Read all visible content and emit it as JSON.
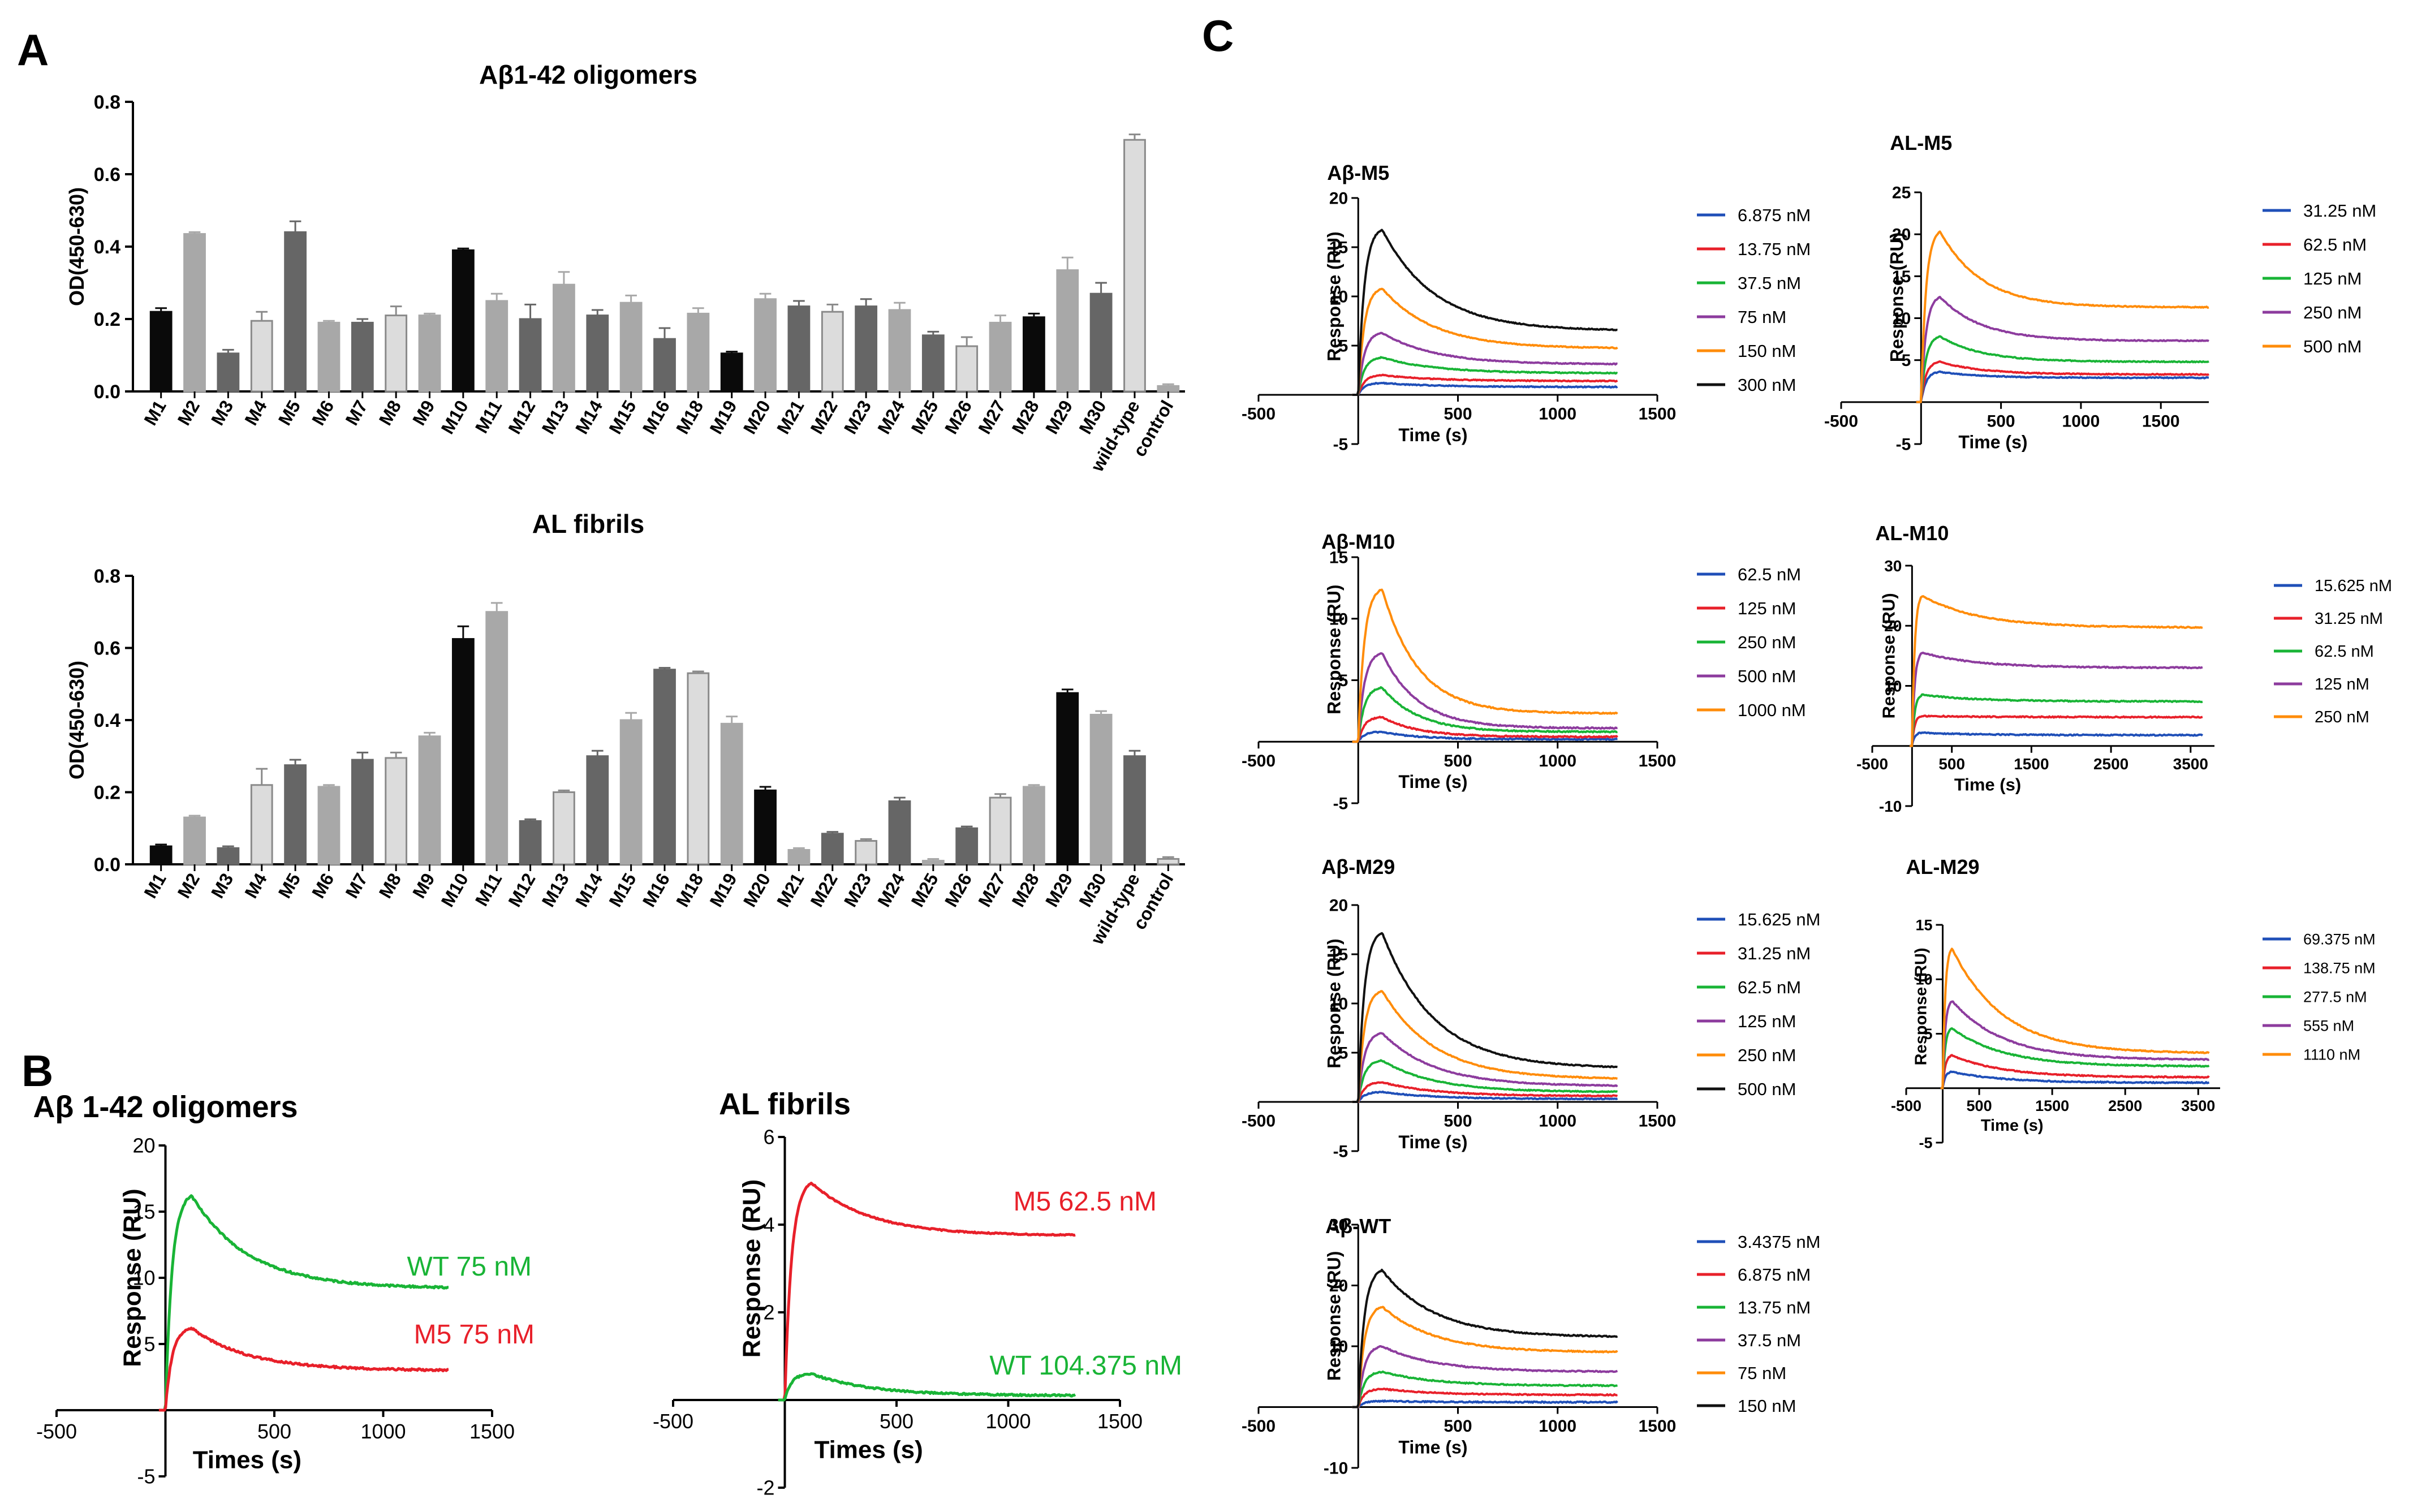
{
  "panel_letters": {
    "a": "A",
    "b": "B",
    "c": "C"
  },
  "colors": {
    "bar_black": "#0a0a0a",
    "bar_light": "#dcdcdc",
    "bar_mid": "#a8a8a8",
    "bar_dark": "#666666",
    "blue": "#1f4fb8",
    "red": "#e8202a",
    "green": "#19b436",
    "purple": "#8d3c9e",
    "orange": "#ff8c0a",
    "black": "#111111"
  },
  "chart_data": [
    {
      "id": "a1",
      "type": "bar",
      "title": "Aβ1-42 oligomers",
      "ylabel": "OD(450-630)",
      "ylim": [
        0,
        0.8
      ],
      "yticks": [
        "0.0",
        "0.2",
        "0.4",
        "0.6",
        "0.8"
      ],
      "categories": [
        "M1",
        "M2",
        "M3",
        "M4",
        "M5",
        "M6",
        "M7",
        "M8",
        "M9",
        "M10",
        "M11",
        "M12",
        "M13",
        "M14",
        "M15",
        "M16",
        "M18",
        "M19",
        "M20",
        "M21",
        "M22",
        "M23",
        "M24",
        "M25",
        "M26",
        "M27",
        "M28",
        "M29",
        "M30",
        "wild-type",
        "control"
      ],
      "values": [
        0.22,
        0.435,
        0.105,
        0.195,
        0.44,
        0.19,
        0.19,
        0.21,
        0.21,
        0.39,
        0.25,
        0.2,
        0.295,
        0.21,
        0.245,
        0.145,
        0.215,
        0.105,
        0.255,
        0.235,
        0.22,
        0.235,
        0.225,
        0.155,
        0.125,
        0.19,
        0.205,
        0.335,
        0.27,
        0.695,
        0.015
      ],
      "errors": [
        0.01,
        0.005,
        0.01,
        0.025,
        0.03,
        0.005,
        0.01,
        0.025,
        0.005,
        0.005,
        0.02,
        0.04,
        0.035,
        0.015,
        0.02,
        0.03,
        0.015,
        0.005,
        0.015,
        0.015,
        0.02,
        0.02,
        0.02,
        0.01,
        0.025,
        0.02,
        0.01,
        0.035,
        0.03,
        0.015,
        0.005
      ],
      "shades": [
        "k",
        "m",
        "d",
        "l",
        "d",
        "m",
        "d",
        "l",
        "m",
        "k",
        "m",
        "d",
        "m",
        "d",
        "m",
        "d",
        "m",
        "k",
        "m",
        "d",
        "l",
        "d",
        "m",
        "d",
        "l",
        "m",
        "k",
        "m",
        "d",
        "l",
        "m"
      ]
    },
    {
      "id": "a2",
      "type": "bar",
      "title": "AL fibrils",
      "ylabel": "OD(450-630)",
      "ylim": [
        0,
        0.8
      ],
      "yticks": [
        "0.0",
        "0.2",
        "0.4",
        "0.6",
        "0.8"
      ],
      "categories": [
        "M1",
        "M2",
        "M3",
        "M4",
        "M5",
        "M6",
        "M7",
        "M8",
        "M9",
        "M10",
        "M11",
        "M12",
        "M13",
        "M14",
        "M15",
        "M16",
        "M18",
        "M19",
        "M20",
        "M21",
        "M22",
        "M23",
        "M24",
        "M25",
        "M26",
        "M27",
        "M28",
        "M29",
        "M30",
        "wild-type",
        "control"
      ],
      "values": [
        0.05,
        0.13,
        0.045,
        0.22,
        0.275,
        0.215,
        0.29,
        0.295,
        0.355,
        0.625,
        0.7,
        0.12,
        0.2,
        0.3,
        0.4,
        0.54,
        0.53,
        0.39,
        0.205,
        0.04,
        0.085,
        0.065,
        0.175,
        0.01,
        0.1,
        0.185,
        0.215,
        0.475,
        0.415,
        0.3,
        0.015
      ],
      "errors": [
        0.005,
        0.005,
        0.005,
        0.045,
        0.015,
        0.005,
        0.02,
        0.015,
        0.01,
        0.035,
        0.025,
        0.005,
        0.005,
        0.015,
        0.02,
        0.005,
        0.005,
        0.02,
        0.01,
        0.005,
        0.005,
        0.005,
        0.01,
        0.005,
        0.005,
        0.01,
        0.005,
        0.01,
        0.01,
        0.015,
        0.005
      ],
      "shades": [
        "k",
        "m",
        "d",
        "l",
        "d",
        "m",
        "d",
        "l",
        "m",
        "k",
        "m",
        "d",
        "l",
        "d",
        "m",
        "d",
        "l",
        "m",
        "k",
        "m",
        "d",
        "l",
        "d",
        "m",
        "d",
        "l",
        "m",
        "k",
        "m",
        "d",
        "l"
      ]
    },
    {
      "id": "b1",
      "type": "line",
      "title": "Aβ 1-42 oligomers",
      "xlabel": "Times (s)",
      "ylabel": "Response (RU)",
      "xlim": [
        -500,
        1500
      ],
      "ylim": [
        -5,
        20
      ],
      "xticks": [
        "-500",
        "500",
        "1000",
        "1500"
      ],
      "yticks": [
        "-5",
        "5",
        "10",
        "15",
        "20"
      ],
      "series": [
        {
          "name": "WT 75 nM",
          "color": "#19b436",
          "peak": 16.2,
          "end": 9.2,
          "noise": 0.12
        },
        {
          "name": "M5 75 nM",
          "color": "#e8202a",
          "peak": 6.2,
          "end": 3.0,
          "noise": 0.12
        }
      ]
    },
    {
      "id": "b2",
      "type": "line",
      "title": "AL fibrils",
      "xlabel": "Times (s)",
      "ylabel": "Response (RU)",
      "xlim": [
        -500,
        1500
      ],
      "ylim": [
        -2,
        6
      ],
      "xticks": [
        "-500",
        "500",
        "1000",
        "1500"
      ],
      "yticks": [
        "-2",
        "2",
        "4",
        "6"
      ],
      "series": [
        {
          "name": "M5 62.5 nM",
          "color": "#e8202a",
          "peak": 4.95,
          "end": 3.75,
          "noise": 0.07
        },
        {
          "name": "WT 104.375 nM",
          "color": "#19b436",
          "peak": 0.6,
          "end": 0.1,
          "noise": 0.1
        }
      ]
    },
    {
      "id": "c1",
      "type": "line",
      "title": "Aβ-M5",
      "xlabel": "Time (s)",
      "ylabel": "Response (RU)",
      "xlim": [
        -500,
        1500
      ],
      "ylim": [
        -5,
        20
      ],
      "xticks": [
        "-500",
        "500",
        "1000",
        "1500"
      ],
      "yticks": [
        "-5",
        "5",
        "10",
        "15",
        "20"
      ],
      "series": [
        {
          "name": "6.875 nM",
          "color": "#1f4fb8",
          "peak": 1.2,
          "end": 0.8,
          "noise": 0.08
        },
        {
          "name": "13.75 nM",
          "color": "#e8202a",
          "peak": 2.0,
          "end": 1.4,
          "noise": 0.08
        },
        {
          "name": "37.5 nM",
          "color": "#19b436",
          "peak": 3.8,
          "end": 2.2,
          "noise": 0.08
        },
        {
          "name": "75 nM",
          "color": "#8d3c9e",
          "peak": 6.3,
          "end": 3.1,
          "noise": 0.08
        },
        {
          "name": "150 nM",
          "color": "#ff8c0a",
          "peak": 10.8,
          "end": 4.7,
          "noise": 0.08
        },
        {
          "name": "300 nM",
          "color": "#111111",
          "peak": 16.8,
          "end": 6.5,
          "noise": 0.08
        }
      ]
    },
    {
      "id": "c2",
      "type": "line",
      "title": "AL-M5",
      "xlabel": "Time (s)",
      "ylabel": "Response (RU)",
      "xlim": [
        -500,
        1800
      ],
      "ylim": [
        -5,
        25
      ],
      "xticks": [
        "-500",
        "500",
        "1000",
        "1500"
      ],
      "yticks": [
        "-5",
        "5",
        "10",
        "15",
        "20",
        "25"
      ],
      "series": [
        {
          "name": "31.25 nM",
          "color": "#1f4fb8",
          "peak": 3.6,
          "end": 2.9,
          "noise": 0.08
        },
        {
          "name": "62.5 nM",
          "color": "#e8202a",
          "peak": 4.8,
          "end": 3.3,
          "noise": 0.08
        },
        {
          "name": "125 nM",
          "color": "#19b436",
          "peak": 7.8,
          "end": 4.8,
          "noise": 0.08
        },
        {
          "name": "250 nM",
          "color": "#8d3c9e",
          "peak": 12.5,
          "end": 7.3,
          "noise": 0.08
        },
        {
          "name": "500 nM",
          "color": "#ff8c0a",
          "peak": 20.3,
          "end": 11.3,
          "noise": 0.08
        }
      ]
    },
    {
      "id": "c3",
      "type": "line",
      "title": "Aβ-M10",
      "xlabel": "Time (s)",
      "ylabel": "Response (RU)",
      "xlim": [
        -500,
        1500
      ],
      "ylim": [
        -5,
        15
      ],
      "xticks": [
        "-500",
        "500",
        "1000",
        "1500"
      ],
      "yticks": [
        "-5",
        "5",
        "10",
        "15"
      ],
      "series": [
        {
          "name": "62.5 nM",
          "color": "#1f4fb8",
          "peak": 0.8,
          "end": 0.2,
          "noise": 0.1
        },
        {
          "name": "125 nM",
          "color": "#e8202a",
          "peak": 2.0,
          "end": 0.4,
          "noise": 0.1
        },
        {
          "name": "250 nM",
          "color": "#19b436",
          "peak": 4.4,
          "end": 0.8,
          "noise": 0.1
        },
        {
          "name": "500 nM",
          "color": "#8d3c9e",
          "peak": 7.2,
          "end": 1.1,
          "noise": 0.1
        },
        {
          "name": "1000 nM",
          "color": "#ff8c0a",
          "peak": 12.4,
          "end": 2.3,
          "noise": 0.1
        }
      ]
    },
    {
      "id": "c4",
      "type": "line",
      "title": "AL-M10",
      "xlabel": "Time (s)",
      "ylabel": "Response (RU)",
      "xlim": [
        -500,
        3800
      ],
      "ylim": [
        -10,
        30
      ],
      "xticks": [
        "-500",
        "500",
        "1500",
        "2500",
        "3500"
      ],
      "yticks": [
        "-10",
        "10",
        "20",
        "30"
      ],
      "series": [
        {
          "name": "15.625 nM",
          "color": "#1f4fb8",
          "peak": 2.2,
          "end": 1.8,
          "noise": 0.1
        },
        {
          "name": "31.25 nM",
          "color": "#e8202a",
          "peak": 5.0,
          "end": 4.8,
          "noise": 0.1
        },
        {
          "name": "62.5 nM",
          "color": "#19b436",
          "peak": 8.5,
          "end": 7.4,
          "noise": 0.1
        },
        {
          "name": "125 nM",
          "color": "#8d3c9e",
          "peak": 15.5,
          "end": 13.0,
          "noise": 0.1
        },
        {
          "name": "250 nM",
          "color": "#ff8c0a",
          "peak": 25.0,
          "end": 19.7,
          "noise": 0.1
        }
      ]
    },
    {
      "id": "c5",
      "type": "line",
      "title": "Aβ-M29",
      "xlabel": "Time (s)",
      "ylabel": "Response (RU)",
      "xlim": [
        -500,
        1500
      ],
      "ylim": [
        -5,
        20
      ],
      "xticks": [
        "-500",
        "500",
        "1000",
        "1500"
      ],
      "yticks": [
        "-5",
        "5",
        "10",
        "15",
        "20"
      ],
      "series": [
        {
          "name": "15.625 nM",
          "color": "#1f4fb8",
          "peak": 1.0,
          "end": 0.3,
          "noise": 0.08
        },
        {
          "name": "31.25 nM",
          "color": "#e8202a",
          "peak": 2.0,
          "end": 0.6,
          "noise": 0.08
        },
        {
          "name": "62.5 nM",
          "color": "#19b436",
          "peak": 4.2,
          "end": 1.0,
          "noise": 0.08
        },
        {
          "name": "125 nM",
          "color": "#8d3c9e",
          "peak": 7.0,
          "end": 1.6,
          "noise": 0.08
        },
        {
          "name": "250 nM",
          "color": "#ff8c0a",
          "peak": 11.3,
          "end": 2.3,
          "noise": 0.08
        },
        {
          "name": "500 nM",
          "color": "#111111",
          "peak": 17.2,
          "end": 3.4,
          "noise": 0.08
        }
      ]
    },
    {
      "id": "c6",
      "type": "line",
      "title": "AL-M29",
      "xlabel": "Time (s)",
      "ylabel": "Response (RU)",
      "xlim": [
        -500,
        3800
      ],
      "ylim": [
        -5,
        15
      ],
      "xticks": [
        "-500",
        "500",
        "1500",
        "2500",
        "3500"
      ],
      "yticks": [
        "-5",
        "5",
        "10",
        "15"
      ],
      "series": [
        {
          "name": "69.375 nM",
          "color": "#1f4fb8",
          "peak": 1.5,
          "end": 0.5,
          "noise": 0.1
        },
        {
          "name": "138.75 nM",
          "color": "#e8202a",
          "peak": 3.0,
          "end": 1.0,
          "noise": 0.1
        },
        {
          "name": "277.5 nM",
          "color": "#19b436",
          "peak": 5.5,
          "end": 2.0,
          "noise": 0.1
        },
        {
          "name": "555 nM",
          "color": "#8d3c9e",
          "peak": 8.0,
          "end": 2.6,
          "noise": 0.1
        },
        {
          "name": "1110 nM",
          "color": "#ff8c0a",
          "peak": 12.8,
          "end": 3.2,
          "noise": 0.1
        }
      ]
    },
    {
      "id": "c7",
      "type": "line",
      "title": "Aβ-WT",
      "xlabel": "Time (s)",
      "ylabel": "Response (RU)",
      "xlim": [
        -500,
        1500
      ],
      "ylim": [
        -10,
        30
      ],
      "xticks": [
        "-500",
        "500",
        "1000",
        "1500"
      ],
      "yticks": [
        "-10",
        "10",
        "20",
        "30"
      ],
      "series": [
        {
          "name": "3.4375 nM",
          "color": "#1f4fb8",
          "peak": 1.0,
          "end": 0.8,
          "noise": 0.1
        },
        {
          "name": "6.875 nM",
          "color": "#e8202a",
          "peak": 3.0,
          "end": 2.0,
          "noise": 0.1
        },
        {
          "name": "13.75 nM",
          "color": "#19b436",
          "peak": 5.8,
          "end": 3.5,
          "noise": 0.1
        },
        {
          "name": "37.5 nM",
          "color": "#8d3c9e",
          "peak": 10.0,
          "end": 5.8,
          "noise": 0.1
        },
        {
          "name": "75 nM",
          "color": "#ff8c0a",
          "peak": 16.5,
          "end": 9.0,
          "noise": 0.1
        },
        {
          "name": "150 nM",
          "color": "#111111",
          "peak": 22.5,
          "end": 11.5,
          "noise": 0.1
        }
      ]
    }
  ]
}
